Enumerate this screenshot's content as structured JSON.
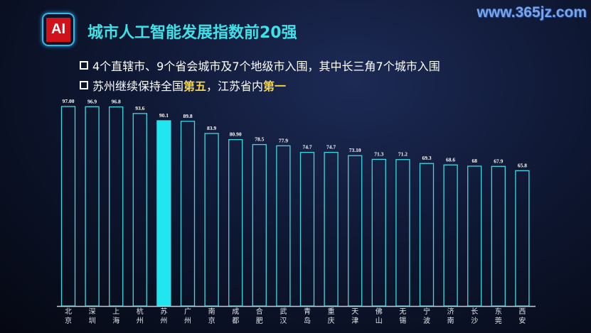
{
  "header": {
    "logo_text": "AI",
    "title": "城市人工智能发展指数前20强"
  },
  "bullets": [
    {
      "parts": [
        "4个直辖市、9个省会城市及7个地级市入围，其中长三角7个城市入围"
      ]
    },
    {
      "parts": [
        "苏州继续保持全国",
        "第五",
        "，江苏省内",
        "第一"
      ]
    }
  ],
  "watermark": "www.365jz.com",
  "chart_data": {
    "type": "bar",
    "title": "城市人工智能发展指数前20强",
    "categories": [
      "北京",
      "深圳",
      "上海",
      "杭州",
      "苏州",
      "广州",
      "南京",
      "成都",
      "合肥",
      "武汉",
      "青岛",
      "重庆",
      "天津",
      "佛山",
      "无锡",
      "宁波",
      "济南",
      "长沙",
      "东莞",
      "西安"
    ],
    "values": [
      97.0,
      96.9,
      96.8,
      93.6,
      90.1,
      89.8,
      83.9,
      80.9,
      78.5,
      77.9,
      74.7,
      74.7,
      73.1,
      71.3,
      71.2,
      69.3,
      68.6,
      68,
      67.9,
      65.8
    ],
    "labels": [
      "97.00",
      "96.9",
      "96.8",
      "93.6",
      "90.1",
      "89.8",
      "83.9",
      "80.90",
      "78.5",
      "77.9",
      "74.7",
      "74.7",
      "73.10",
      "71.3",
      "71.2",
      "69.3",
      "68.6",
      "68",
      "67.9",
      "65.8"
    ],
    "highlight": "苏州",
    "ylim": [
      0,
      97
    ],
    "colors": {
      "outline": "#3fd8e0",
      "highlight": "#1fe6f0",
      "axis": "#c8ccd4"
    }
  }
}
